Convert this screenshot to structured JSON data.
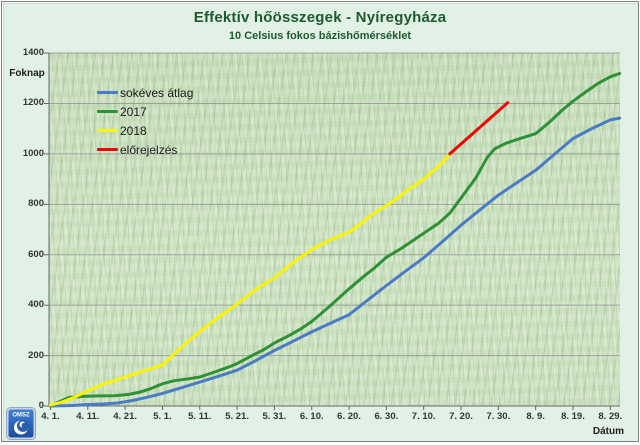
{
  "title": "Effektív hőösszegek - Nyíregyháza",
  "subtitle": "10 Celsius fokos bázishőmérséklet",
  "y_axis": {
    "label": "Foknap",
    "tick_values": [
      0,
      200,
      400,
      600,
      800,
      1000,
      1200,
      1400
    ],
    "ticks": [
      "0",
      "200",
      "400",
      "600",
      "800",
      "1000",
      "1200",
      "1400"
    ]
  },
  "x_axis": {
    "label": "Dátum",
    "tick_days": [
      0,
      10,
      20,
      30,
      40,
      50,
      60,
      70,
      80,
      90,
      100,
      110,
      120,
      130,
      140,
      150
    ],
    "ticks": [
      "4. 1.",
      "4. 11.",
      "4. 21.",
      "5. 1.",
      "5. 11.",
      "5. 21.",
      "5. 31.",
      "6. 10.",
      "6. 20.",
      "6. 30.",
      "7. 10.",
      "7. 20.",
      "7. 30.",
      "8. 9.",
      "8. 19.",
      "8. 29."
    ]
  },
  "legend": [
    {
      "label": "sokéves átlag",
      "color": "#4a7bc4"
    },
    {
      "label": "2017",
      "color": "#2f9135"
    },
    {
      "label": "2018",
      "color": "#fbf400"
    },
    {
      "label": "előrejelzés",
      "color": "#f00505"
    }
  ],
  "logo": {
    "text": "OMSZ"
  },
  "colors": {
    "background": "#e2f1e6",
    "title": "#1d5a2b",
    "grid": "#8f958f",
    "axis": "#666666"
  },
  "chart_data": {
    "type": "line",
    "title": "Effektív hőösszegek - Nyíregyháza",
    "subtitle": "10 Celsius fokos bázishőmérséklet",
    "xlabel": "Dátum",
    "ylabel": "Foknap",
    "ylim": [
      0,
      1400
    ],
    "grid": true,
    "legend_position": "upper-left-inside",
    "x_unit": "days since April 1",
    "categories": [
      "4. 1.",
      "4. 11.",
      "4. 21.",
      "5. 1.",
      "5. 11.",
      "5. 21.",
      "5. 31.",
      "6. 10.",
      "6. 20.",
      "6. 30.",
      "7. 10.",
      "7. 20.",
      "7. 30.",
      "8. 9.",
      "8. 19.",
      "8. 29."
    ],
    "series": [
      {
        "name": "sokéves átlag",
        "color": "#4a7bc4",
        "points": [
          [
            0,
            0
          ],
          [
            6,
            2
          ],
          [
            10,
            6
          ],
          [
            14,
            8
          ],
          [
            18,
            12
          ],
          [
            22,
            22
          ],
          [
            26,
            35
          ],
          [
            30,
            50
          ],
          [
            35,
            72
          ],
          [
            40,
            95
          ],
          [
            45,
            118
          ],
          [
            50,
            142
          ],
          [
            55,
            180
          ],
          [
            60,
            220
          ],
          [
            65,
            257
          ],
          [
            70,
            294
          ],
          [
            75,
            328
          ],
          [
            80,
            362
          ],
          [
            85,
            420
          ],
          [
            90,
            478
          ],
          [
            95,
            533
          ],
          [
            100,
            588
          ],
          [
            105,
            652
          ],
          [
            110,
            717
          ],
          [
            115,
            777
          ],
          [
            120,
            836
          ],
          [
            125,
            886
          ],
          [
            130,
            935
          ],
          [
            135,
            998
          ],
          [
            140,
            1061
          ],
          [
            145,
            1100
          ],
          [
            150,
            1135
          ],
          [
            152.5,
            1142
          ]
        ]
      },
      {
        "name": "2017",
        "color": "#2f9135",
        "points": [
          [
            0,
            0
          ],
          [
            2,
            15
          ],
          [
            5,
            34
          ],
          [
            9,
            38
          ],
          [
            13,
            40
          ],
          [
            17,
            41
          ],
          [
            21,
            46
          ],
          [
            24,
            55
          ],
          [
            27,
            70
          ],
          [
            30,
            88
          ],
          [
            33,
            100
          ],
          [
            37,
            108
          ],
          [
            40,
            115
          ],
          [
            44,
            135
          ],
          [
            48,
            156
          ],
          [
            50,
            168
          ],
          [
            54,
            200
          ],
          [
            57,
            222
          ],
          [
            60,
            250
          ],
          [
            64,
            280
          ],
          [
            67,
            305
          ],
          [
            70,
            335
          ],
          [
            74,
            385
          ],
          [
            77,
            425
          ],
          [
            80,
            465
          ],
          [
            84,
            515
          ],
          [
            87,
            550
          ],
          [
            90,
            590
          ],
          [
            94,
            625
          ],
          [
            97,
            655
          ],
          [
            100,
            685
          ],
          [
            104,
            725
          ],
          [
            107,
            765
          ],
          [
            110,
            825
          ],
          [
            114,
            905
          ],
          [
            117,
            985
          ],
          [
            119,
            1020
          ],
          [
            122,
            1042
          ],
          [
            126,
            1062
          ],
          [
            130,
            1080
          ],
          [
            134,
            1130
          ],
          [
            137,
            1172
          ],
          [
            140,
            1209
          ],
          [
            144,
            1252
          ],
          [
            147,
            1282
          ],
          [
            150,
            1306
          ],
          [
            152.5,
            1319
          ]
        ]
      },
      {
        "name": "2018",
        "color": "#fbf400",
        "points": [
          [
            0,
            4
          ],
          [
            3,
            15
          ],
          [
            6,
            32
          ],
          [
            10,
            60
          ],
          [
            14,
            86
          ],
          [
            17,
            100
          ],
          [
            20,
            115
          ],
          [
            24,
            135
          ],
          [
            27,
            148
          ],
          [
            30,
            163
          ],
          [
            33,
            205
          ],
          [
            36,
            246
          ],
          [
            40,
            296
          ],
          [
            44,
            342
          ],
          [
            47,
            372
          ],
          [
            50,
            405
          ],
          [
            53,
            440
          ],
          [
            56,
            472
          ],
          [
            60,
            508
          ],
          [
            63,
            545
          ],
          [
            66,
            580
          ],
          [
            70,
            620
          ],
          [
            73,
            645
          ],
          [
            76,
            666
          ],
          [
            80,
            690
          ],
          [
            83,
            722
          ],
          [
            86,
            758
          ],
          [
            90,
            795
          ],
          [
            93,
            825
          ],
          [
            96,
            860
          ],
          [
            100,
            900
          ],
          [
            103,
            938
          ],
          [
            105,
            965
          ],
          [
            107,
            1000
          ]
        ]
      },
      {
        "name": "előrejelzés",
        "color": "#f00505",
        "points": [
          [
            107,
            1000
          ],
          [
            122.5,
            1203
          ]
        ]
      }
    ]
  }
}
